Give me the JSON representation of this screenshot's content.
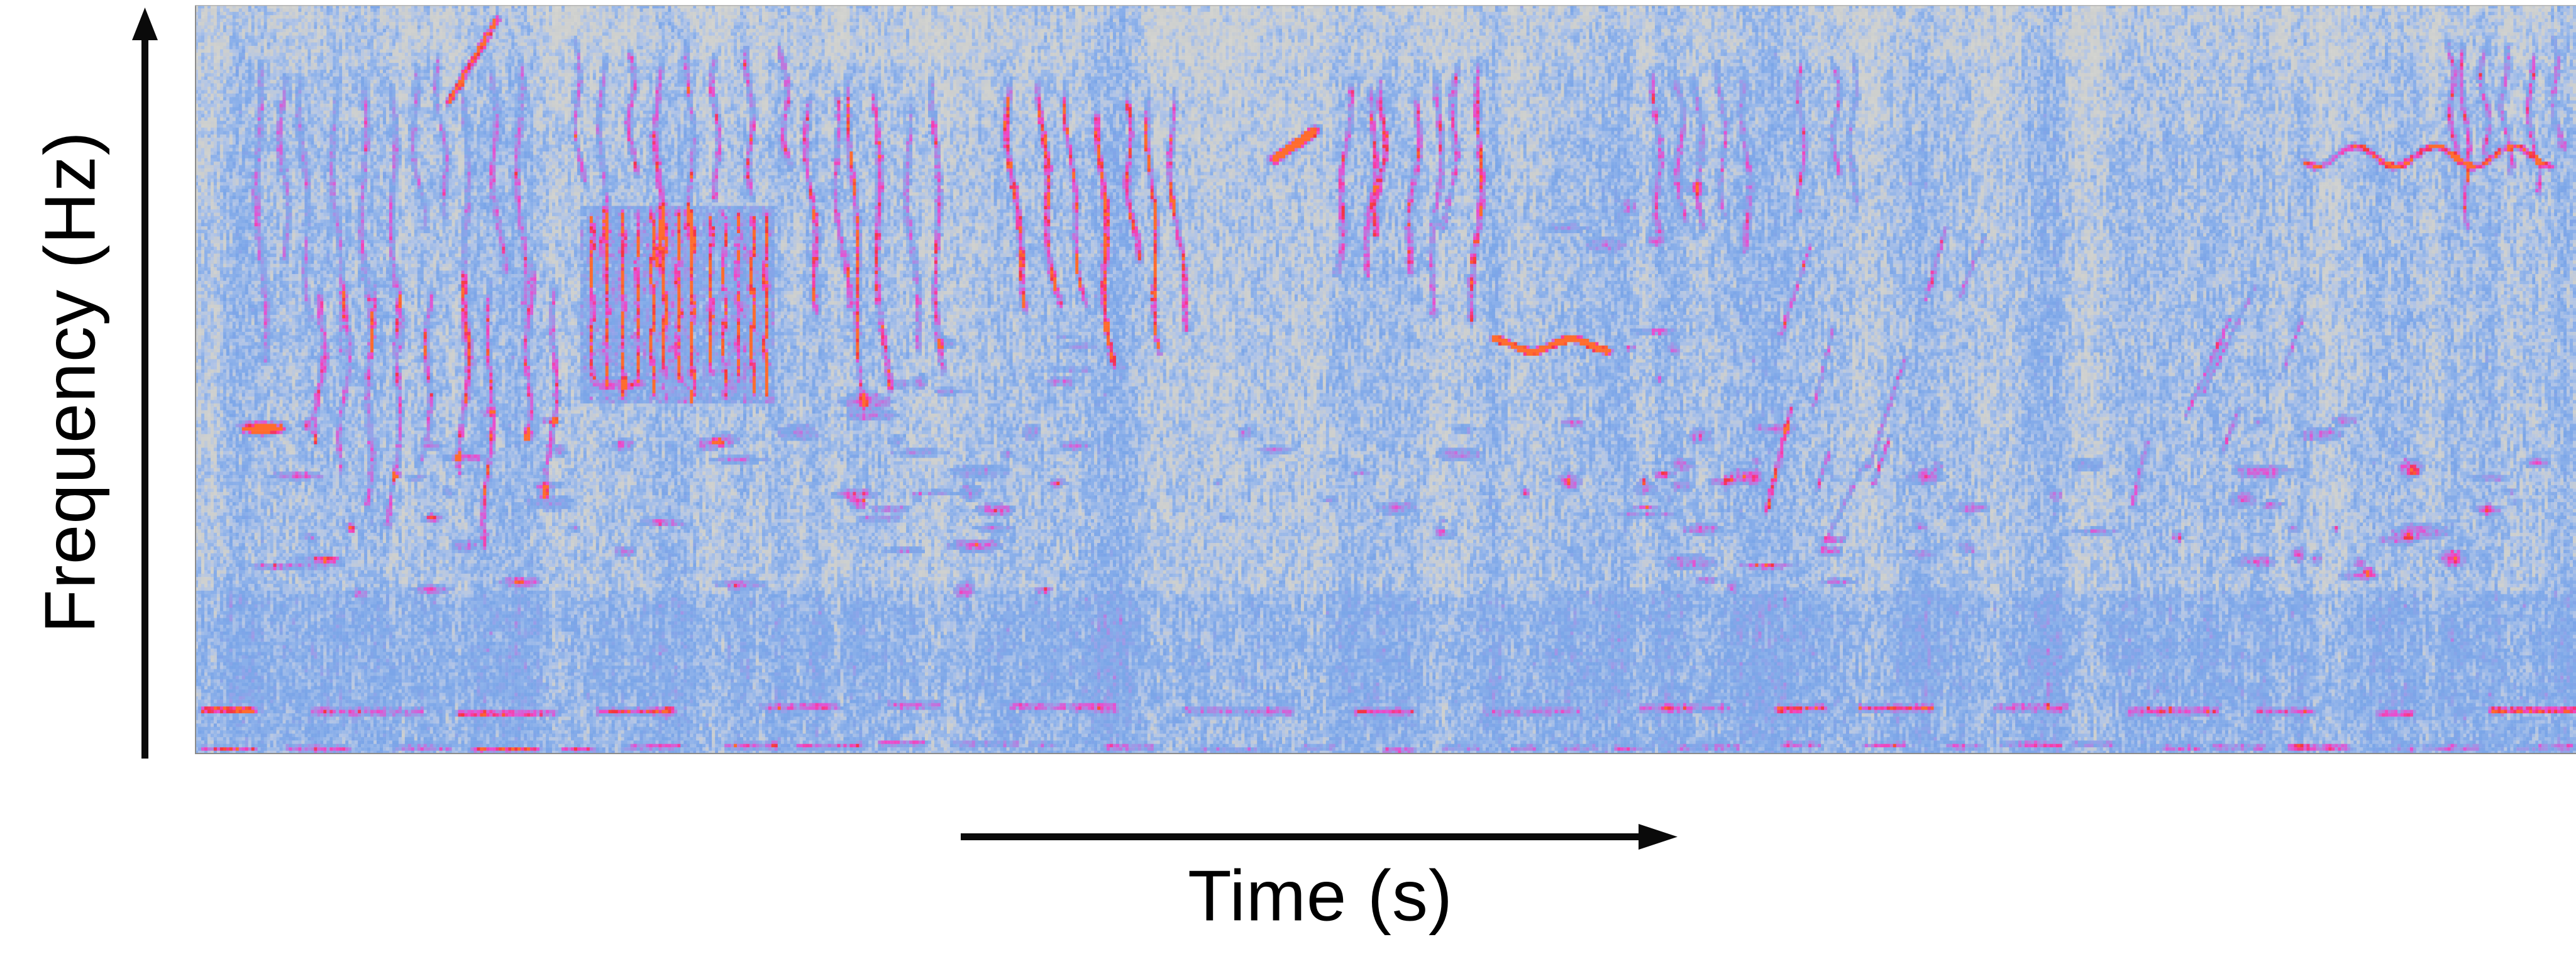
{
  "figure": {
    "background_color": "#ffffff",
    "xlabel": "Time (s)",
    "ylabel": "Frequency (Hz)"
  },
  "chart_data": {
    "type": "heatmap",
    "subtype": "audio-spectrogram",
    "title": "",
    "xlabel": "Time (s)",
    "ylabel": "Frequency (Hz)",
    "x_axis": {
      "label": "Time (s)",
      "style": "arrow-only",
      "ticks": []
    },
    "y_axis": {
      "label": "Frequency (Hz)",
      "style": "arrow-only",
      "ticks": []
    },
    "legend": null,
    "note": "Pixelated audio spectrogram: blue-gray noise background with magenta/pink call traces, red-orange energy hotspots, dense vertical harmonic combs, and a dashed magenta band near the bottom.",
    "frame_color": "#8b8b8b",
    "grid": {
      "cols": 760,
      "rows": 220
    },
    "seed": 1337,
    "colormap": [
      [
        0.0,
        "#d8d7d1"
      ],
      [
        0.24,
        "#cdcfce"
      ],
      [
        0.33,
        "#b4c6e6"
      ],
      [
        0.44,
        "#8db1ea"
      ],
      [
        0.54,
        "#7aa5e8"
      ],
      [
        0.62,
        "#93a5e9"
      ],
      [
        0.7,
        "#ab89e2"
      ],
      [
        0.77,
        "#cd67d9"
      ],
      [
        0.83,
        "#e94ed0"
      ],
      [
        0.885,
        "#f73da4"
      ],
      [
        0.94,
        "#f4333f"
      ],
      [
        1.0,
        "#ff6c2e"
      ]
    ],
    "background": {
      "base": 0.37,
      "col_amp": 0.16,
      "cell_amp": 0.42,
      "v_smooth": 0.45,
      "sparkle_p": 0.025,
      "sparkle_amp": 0.14
    },
    "bands": [
      {
        "y0": 0.0,
        "y1": 0.07,
        "bias": -0.06
      },
      {
        "y0": 0.07,
        "y1": 0.16,
        "bias": -0.03
      },
      {
        "y0": 0.78,
        "y1": 0.93,
        "bias": 0.09
      },
      {
        "y0": 0.93,
        "y1": 1.0,
        "bias": 0.07
      }
    ],
    "features": [
      {
        "type": "vlines",
        "x": 0.018,
        "y": 0.05,
        "w": 0.125,
        "h": 0.42,
        "n": 11,
        "amp": 0.34,
        "curve": 0.25
      },
      {
        "type": "vlines",
        "x": 0.045,
        "y": 0.33,
        "w": 0.11,
        "h": 0.38,
        "n": 9,
        "amp": 0.42,
        "curve": -0.2
      },
      {
        "type": "diag",
        "x1": 0.106,
        "y1": 0.128,
        "x2": 0.127,
        "y2": 0.012,
        "wd": 1.6,
        "amp": 0.5
      },
      {
        "type": "vlines",
        "x": 0.152,
        "y": 0.03,
        "w": 0.1,
        "h": 0.3,
        "n": 8,
        "amp": 0.44,
        "curve": 0.1
      },
      {
        "type": "comb",
        "x": 0.163,
        "y": 0.27,
        "w": 0.08,
        "h": 0.26,
        "n": 13,
        "amp": 0.45,
        "fill": 0.28
      },
      {
        "type": "blobs",
        "x": 0.02,
        "y": 0.54,
        "w": 0.135,
        "h": 0.25,
        "n": 22,
        "r": 2.6,
        "amp": 0.44
      },
      {
        "type": "blobs",
        "x": 0.055,
        "y": 0.62,
        "w": 0.05,
        "h": 0.08,
        "n": 3,
        "r": 1.7,
        "amp": 0.6
      },
      {
        "type": "blobs",
        "x": 0.145,
        "y": 0.5,
        "w": 0.22,
        "h": 0.28,
        "n": 32,
        "r": 2.8,
        "amp": 0.46
      },
      {
        "type": "vlines",
        "x": 0.252,
        "y": 0.06,
        "w": 0.062,
        "h": 0.47,
        "n": 6,
        "amp": 0.52,
        "curve": 0.35
      },
      {
        "type": "vlines",
        "x": 0.338,
        "y": 0.08,
        "w": 0.078,
        "h": 0.37,
        "n": 7,
        "amp": 0.54,
        "curve": 0.5
      },
      {
        "type": "blobs",
        "x": 0.3,
        "y": 0.44,
        "w": 0.09,
        "h": 0.28,
        "n": 10,
        "r": 2.4,
        "amp": 0.4
      },
      {
        "type": "diag",
        "x1": 0.452,
        "y1": 0.205,
        "x2": 0.471,
        "y2": 0.163,
        "wd": 2.2,
        "amp": 0.58
      },
      {
        "type": "vlines",
        "x": 0.478,
        "y": 0.06,
        "w": 0.065,
        "h": 0.4,
        "n": 7,
        "amp": 0.54,
        "curve": -0.35
      },
      {
        "type": "squiggle",
        "x": 0.545,
        "y": 0.452,
        "w": 0.05,
        "wd": 1.8,
        "amp": 0.6
      },
      {
        "type": "blobs",
        "x": 0.574,
        "y": 0.2,
        "w": 0.058,
        "h": 0.5,
        "n": 13,
        "r": 2.6,
        "amp": 0.46
      },
      {
        "type": "vlines",
        "x": 0.605,
        "y": 0.06,
        "w": 0.05,
        "h": 0.32,
        "n": 5,
        "amp": 0.38,
        "curve": 0.15
      },
      {
        "type": "blobs",
        "x": 0.42,
        "y": 0.56,
        "w": 0.12,
        "h": 0.2,
        "n": 12,
        "r": 2.4,
        "amp": 0.4
      },
      {
        "type": "blobs",
        "x": 0.548,
        "y": 0.54,
        "w": 0.145,
        "h": 0.24,
        "n": 18,
        "r": 2.6,
        "amp": 0.46
      },
      {
        "type": "blobs",
        "x": 0.598,
        "y": 0.61,
        "w": 0.035,
        "h": 0.06,
        "n": 2,
        "r": 1.7,
        "amp": 0.6
      },
      {
        "type": "vlines",
        "x": 0.665,
        "y": 0.05,
        "w": 0.04,
        "h": 0.24,
        "n": 3,
        "amp": 0.33,
        "curve": 0
      },
      {
        "type": "diags",
        "x": 0.652,
        "y": 0.35,
        "w": 0.15,
        "h": 0.4,
        "n": 9,
        "amp": 0.4
      },
      {
        "type": "blobs",
        "x": 0.7,
        "y": 0.6,
        "w": 0.11,
        "h": 0.16,
        "n": 9,
        "r": 2.4,
        "amp": 0.38
      },
      {
        "type": "diags",
        "x": 0.8,
        "y": 0.42,
        "w": 0.09,
        "h": 0.3,
        "n": 5,
        "amp": 0.34
      },
      {
        "type": "blobs",
        "x": 0.832,
        "y": 0.55,
        "w": 0.118,
        "h": 0.24,
        "n": 17,
        "r": 2.8,
        "amp": 0.48
      },
      {
        "type": "blobs",
        "x": 0.87,
        "y": 0.66,
        "w": 0.045,
        "h": 0.06,
        "n": 3,
        "r": 1.8,
        "amp": 0.62
      },
      {
        "type": "squiggle",
        "x": 0.885,
        "y": 0.2,
        "w": 0.105,
        "wd": 3.0,
        "amp": 0.38
      },
      {
        "type": "vlines",
        "x": 0.94,
        "y": 0.03,
        "w": 0.054,
        "h": 0.26,
        "n": 6,
        "amp": 0.42,
        "curve": 0.2
      },
      {
        "type": "blobs",
        "x": 0.952,
        "y": 0.6,
        "w": 0.042,
        "h": 0.12,
        "n": 5,
        "r": 2.2,
        "amp": 0.44
      },
      {
        "type": "hdash",
        "y": 0.938,
        "hh": 2.6,
        "seg": 0.03,
        "gap": 0.022,
        "amp": 0.38
      },
      {
        "type": "hdash",
        "y": 0.988,
        "hh": 2.0,
        "seg": 0.018,
        "gap": 0.012,
        "amp": 0.33
      }
    ]
  }
}
